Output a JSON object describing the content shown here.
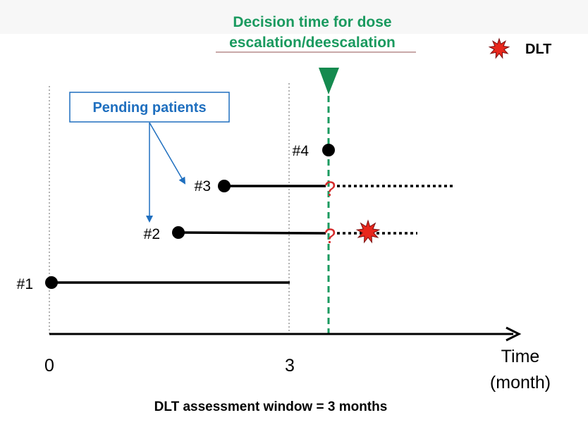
{
  "decision": {
    "line1": "Decision time for dose",
    "line2": "escalation/deescalation"
  },
  "legend": {
    "label": "DLT",
    "icon": "starburst-icon"
  },
  "callout": {
    "label": "Pending patients"
  },
  "patients": [
    {
      "label": "#1",
      "start_month": 0
    },
    {
      "label": "#2",
      "start_month": 1.6
    },
    {
      "label": "#3",
      "start_month": 2.2
    },
    {
      "label": "#4",
      "start_month": 3.5
    }
  ],
  "pending_mark": "?",
  "axis": {
    "tick0": "0",
    "tick3": "3",
    "label_line1": "Time",
    "label_line2": "(month)"
  },
  "footnote": "DLT assessment window = 3 months",
  "colors": {
    "decision": "#1a9a5f",
    "pending": "#1f6fbf",
    "dlt": "#e8271c",
    "question": "#d42a2a"
  }
}
